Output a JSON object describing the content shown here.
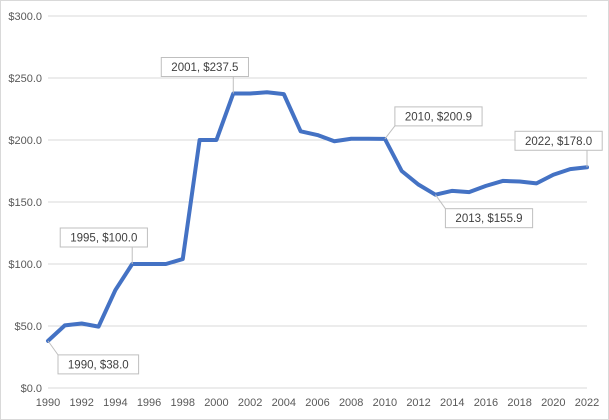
{
  "chart_data": {
    "type": "line",
    "title": "",
    "xlabel": "",
    "ylabel": "",
    "ylim": [
      0,
      300
    ],
    "y_ticks": [
      0,
      50,
      100,
      150,
      200,
      250,
      300
    ],
    "y_tick_labels": [
      "$0.0",
      "$50.0",
      "$100.0",
      "$150.0",
      "$200.0",
      "$250.0",
      "$300.0"
    ],
    "x_tick_labels": [
      "1990",
      "1992",
      "1994",
      "1996",
      "1998",
      "2000",
      "2002",
      "2004",
      "2006",
      "2008",
      "2010",
      "2012",
      "2014",
      "2016",
      "2018",
      "2020",
      "2022"
    ],
    "grid": "horizontal",
    "legend": "none",
    "line_color": "#4472C4",
    "series": [
      {
        "x": [
          1990,
          1991,
          1992,
          1993,
          1994,
          1995,
          1996,
          1997,
          1998,
          1999,
          2000,
          2001,
          2002,
          2003,
          2004,
          2005,
          2006,
          2007,
          2008,
          2009,
          2010,
          2011,
          2012,
          2013,
          2014,
          2015,
          2016,
          2017,
          2018,
          2019,
          2020,
          2021,
          2022
        ],
        "values": [
          38.0,
          50.5,
          52.0,
          49.5,
          79.0,
          100.0,
          100.0,
          100.0,
          104.0,
          200.0,
          200.0,
          237.5,
          237.5,
          238.5,
          237.0,
          207.0,
          204.0,
          199.0,
          201.0,
          201.0,
          200.9,
          175.0,
          164.0,
          155.9,
          159.0,
          158.0,
          163.0,
          167.0,
          166.5,
          165.0,
          172.0,
          176.5,
          178.0
        ]
      }
    ],
    "annotations": [
      {
        "x": 1990,
        "y": 38.0,
        "label": "1990, $38.0",
        "placement": "below-right"
      },
      {
        "x": 1995,
        "y": 100.0,
        "label": "1995, $100.0",
        "placement": "above-left"
      },
      {
        "x": 2001,
        "y": 237.5,
        "label": "2001, $237.5",
        "placement": "above-left"
      },
      {
        "x": 2010,
        "y": 200.9,
        "label": "2010, $200.9",
        "placement": "above-right"
      },
      {
        "x": 2013,
        "y": 155.9,
        "label": "2013, $155.9",
        "placement": "below-right"
      },
      {
        "x": 2022,
        "y": 178.0,
        "label": "2022, $178.0",
        "placement": "above-left"
      }
    ]
  }
}
